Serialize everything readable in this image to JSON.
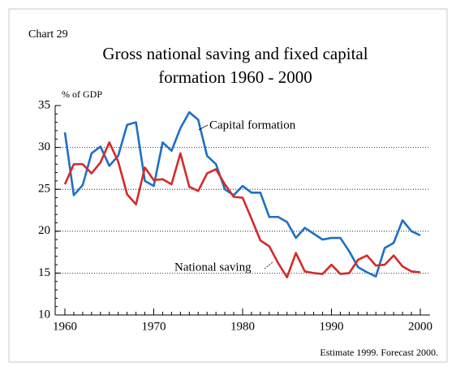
{
  "chart_data": {
    "type": "line",
    "label": "Chart 29",
    "title": [
      "Gross national saving and fixed capital",
      "formation 1960 - 2000"
    ],
    "y_axis_label": "% of GDP",
    "note": "Estimate 1999. Forecast 2000.",
    "x": [
      1960,
      1961,
      1962,
      1963,
      1964,
      1965,
      1966,
      1967,
      1968,
      1969,
      1970,
      1971,
      1972,
      1973,
      1974,
      1975,
      1976,
      1977,
      1978,
      1979,
      1980,
      1981,
      1982,
      1983,
      1984,
      1985,
      1986,
      1987,
      1988,
      1989,
      1990,
      1991,
      1992,
      1993,
      1994,
      1995,
      1996,
      1997,
      1998,
      1999,
      2000
    ],
    "series": [
      {
        "name": "Capital formation",
        "color": "#1f6fc5",
        "values": [
          31.8,
          24.3,
          25.5,
          29.3,
          30.1,
          27.8,
          29.0,
          32.7,
          33.0,
          26.0,
          25.4,
          30.6,
          29.6,
          32.3,
          34.2,
          33.3,
          29.0,
          28.0,
          25.0,
          24.3,
          25.4,
          24.6,
          24.6,
          21.7,
          21.7,
          21.1,
          19.2,
          20.4,
          19.7,
          19.0,
          19.2,
          19.2,
          17.6,
          15.7,
          15.1,
          14.6,
          18.0,
          18.6,
          21.3,
          20.0,
          19.5
        ]
      },
      {
        "name": "National saving",
        "color": "#d42a2a",
        "values": [
          25.6,
          28.0,
          28.0,
          26.9,
          28.2,
          30.6,
          28.3,
          24.4,
          23.2,
          27.6,
          26.1,
          26.2,
          25.6,
          29.3,
          25.3,
          24.8,
          26.9,
          27.4,
          25.6,
          24.1,
          24.0,
          21.5,
          18.9,
          18.2,
          16.2,
          14.5,
          17.4,
          15.2,
          15.0,
          14.9,
          16.0,
          14.9,
          15.0,
          16.6,
          17.1,
          15.9,
          16.0,
          17.1,
          15.8,
          15.2,
          15.1
        ]
      }
    ],
    "xlim": [
      1960,
      2000
    ],
    "xticks": [
      1960,
      1970,
      1980,
      1990,
      2000
    ],
    "ylim": [
      10,
      35
    ],
    "yticks": [
      10,
      15,
      20,
      25,
      30,
      35
    ],
    "grid": true
  }
}
